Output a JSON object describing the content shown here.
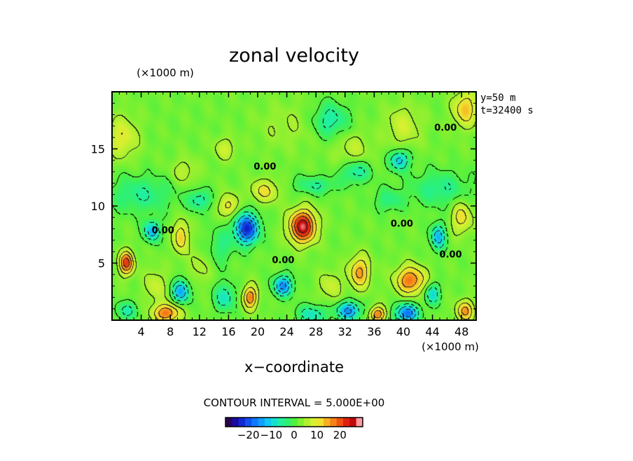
{
  "chart_data": {
    "type": "heatmap",
    "title": "zonal velocity",
    "xlabel": "x−coordinate",
    "x_unit": "(×1000 m)",
    "y_unit": "(×1000 m)",
    "xlim": [
      0,
      50
    ],
    "ylim": [
      0,
      20
    ],
    "x_ticks": [
      4,
      8,
      12,
      16,
      20,
      24,
      28,
      32,
      36,
      40,
      44,
      48
    ],
    "x_tick_labels": [
      "4",
      "8",
      "12",
      "16",
      "20",
      "24",
      "28",
      "32",
      "36",
      "40",
      "44",
      "48"
    ],
    "y_ticks": [
      5,
      10,
      15
    ],
    "y_tick_labels": [
      "5",
      "10",
      "15"
    ],
    "info_lines": [
      "y=50  m",
      "t=32400  s"
    ],
    "contour_interval_text": "CONTOUR INTERVAL =  5.000E+00",
    "contour_labels": [
      {
        "text": "0.00",
        "x": 45.8,
        "y": 16.6
      },
      {
        "text": "0.00",
        "x": 21.0,
        "y": 13.2
      },
      {
        "text": "0.00",
        "x": 7.0,
        "y": 7.6
      },
      {
        "text": "0.00",
        "x": 39.8,
        "y": 8.2
      },
      {
        "text": "0.00",
        "x": 46.5,
        "y": 5.5
      },
      {
        "text": "0.00",
        "x": 23.5,
        "y": 5.0
      }
    ],
    "colorbar": {
      "min": -30,
      "max": 30,
      "tick_values": [
        -20,
        -10,
        0,
        10,
        20
      ],
      "tick_labels": [
        "−20",
        "−10",
        "0",
        "10",
        "20"
      ],
      "colors": [
        "#2a0055",
        "#1a0aa0",
        "#1028d0",
        "#1050f0",
        "#1078ff",
        "#10a0ff",
        "#10c8f0",
        "#18e0d0",
        "#20f0a0",
        "#30f070",
        "#50f040",
        "#80f030",
        "#b0f030",
        "#d8f030",
        "#f0e030",
        "#f8b020",
        "#f88018",
        "#f05010",
        "#e02010",
        "#c00808",
        "#ff9aa0"
      ]
    },
    "features": [
      {
        "x": 18.5,
        "y": 8.0,
        "sx": 1.6,
        "sy": 1.3,
        "v": -26
      },
      {
        "x": 23.5,
        "y": 3.0,
        "sx": 1.3,
        "sy": 0.9,
        "v": -18
      },
      {
        "x": 9.5,
        "y": 2.5,
        "sx": 1.2,
        "sy": 1.0,
        "v": -16
      },
      {
        "x": 5.5,
        "y": 7.8,
        "sx": 1.1,
        "sy": 0.9,
        "v": -15
      },
      {
        "x": 32.5,
        "y": 0.8,
        "sx": 1.6,
        "sy": 0.8,
        "v": -18
      },
      {
        "x": 40.5,
        "y": 0.6,
        "sx": 1.6,
        "sy": 0.8,
        "v": -20
      },
      {
        "x": 44.0,
        "y": 2.3,
        "sx": 1.0,
        "sy": 0.9,
        "v": -12
      },
      {
        "x": 44.8,
        "y": 7.3,
        "sx": 1.0,
        "sy": 1.1,
        "v": -15
      },
      {
        "x": 39.5,
        "y": 14.0,
        "sx": 1.3,
        "sy": 0.9,
        "v": -14
      },
      {
        "x": 33.5,
        "y": 13.0,
        "sx": 2.0,
        "sy": 1.0,
        "v": -9
      },
      {
        "x": 30.0,
        "y": 17.5,
        "sx": 2.4,
        "sy": 1.5,
        "v": -9
      },
      {
        "x": 4.0,
        "y": 11.0,
        "sx": 4.5,
        "sy": 1.6,
        "v": -7
      },
      {
        "x": 28.0,
        "y": 11.8,
        "sx": 3.0,
        "sy": 0.8,
        "v": -7
      },
      {
        "x": 45.0,
        "y": 11.5,
        "sx": 4.0,
        "sy": 1.5,
        "v": -7
      },
      {
        "x": 15.0,
        "y": 6.5,
        "sx": 1.6,
        "sy": 1.6,
        "v": -6
      },
      {
        "x": 12.0,
        "y": 10.5,
        "sx": 1.5,
        "sy": 0.9,
        "v": -9
      },
      {
        "x": 38.0,
        "y": 10.5,
        "sx": 2.0,
        "sy": 1.0,
        "v": -6
      },
      {
        "x": 15.5,
        "y": 2.0,
        "sx": 1.4,
        "sy": 1.2,
        "v": -10
      },
      {
        "x": 27.5,
        "y": 0.5,
        "sx": 2.0,
        "sy": 0.8,
        "v": -10
      },
      {
        "x": 2.0,
        "y": 0.8,
        "sx": 1.5,
        "sy": 0.8,
        "v": -8
      },
      {
        "x": 26.2,
        "y": 8.2,
        "sx": 1.8,
        "sy": 1.4,
        "v": 26
      },
      {
        "x": 2.0,
        "y": 5.0,
        "sx": 1.0,
        "sy": 1.0,
        "v": 20
      },
      {
        "x": 41.0,
        "y": 3.5,
        "sx": 2.0,
        "sy": 1.2,
        "v": 17
      },
      {
        "x": 34.0,
        "y": 4.2,
        "sx": 1.4,
        "sy": 1.4,
        "v": 14
      },
      {
        "x": 7.5,
        "y": 0.6,
        "sx": 1.8,
        "sy": 0.8,
        "v": 17
      },
      {
        "x": 36.5,
        "y": 0.5,
        "sx": 1.1,
        "sy": 0.7,
        "v": 16
      },
      {
        "x": 48.5,
        "y": 0.8,
        "sx": 1.2,
        "sy": 0.9,
        "v": 14
      },
      {
        "x": 19.0,
        "y": 2.0,
        "sx": 1.0,
        "sy": 1.0,
        "v": 16
      },
      {
        "x": 9.5,
        "y": 7.3,
        "sx": 1.0,
        "sy": 1.4,
        "v": 12
      },
      {
        "x": 16.0,
        "y": 10.0,
        "sx": 1.2,
        "sy": 1.0,
        "v": 10
      },
      {
        "x": 21.0,
        "y": 11.3,
        "sx": 2.0,
        "sy": 1.0,
        "v": 9
      },
      {
        "x": 48.0,
        "y": 9.0,
        "sx": 1.4,
        "sy": 1.4,
        "v": 10
      },
      {
        "x": 48.5,
        "y": 18.5,
        "sx": 1.6,
        "sy": 1.5,
        "v": 12
      },
      {
        "x": 40.0,
        "y": 17.0,
        "sx": 2.5,
        "sy": 1.8,
        "v": 6
      },
      {
        "x": 1.5,
        "y": 16.0,
        "sx": 2.0,
        "sy": 1.8,
        "v": 8
      },
      {
        "x": 15.5,
        "y": 15.0,
        "sx": 1.5,
        "sy": 1.0,
        "v": 6
      },
      {
        "x": 33.0,
        "y": 15.0,
        "sx": 2.5,
        "sy": 1.5,
        "v": 5
      },
      {
        "x": 10.0,
        "y": 13.0,
        "sx": 1.8,
        "sy": 1.2,
        "v": 5
      },
      {
        "x": 6.0,
        "y": 3.0,
        "sx": 1.5,
        "sy": 1.5,
        "v": 6
      },
      {
        "x": 30.0,
        "y": 3.0,
        "sx": 1.5,
        "sy": 1.3,
        "v": 6
      },
      {
        "x": 12.0,
        "y": 4.5,
        "sx": 1.5,
        "sy": 1.5,
        "v": 4
      },
      {
        "x": 24.0,
        "y": 17.0,
        "sx": 4.0,
        "sy": 2.0,
        "v": 3
      }
    ],
    "base_value": 2
  }
}
